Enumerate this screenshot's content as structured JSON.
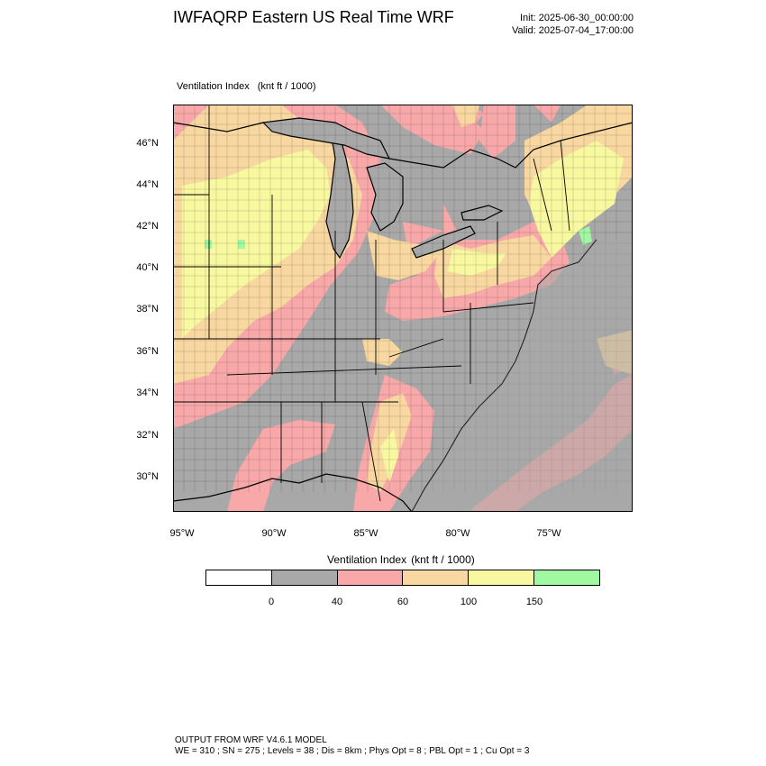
{
  "header": {
    "title": "IWFAQRP Eastern US Real Time WRF",
    "init": "Init: 2025-06-30_00:00:00",
    "valid": "Valid: 2025-07-04_17:00:00"
  },
  "plot": {
    "field_name": "Ventilation Index",
    "units": "(knt ft / 1000)"
  },
  "axes": {
    "lat_labels": [
      "46°N",
      "44°N",
      "42°N",
      "40°N",
      "38°N",
      "36°N",
      "34°N",
      "32°N",
      "30°N"
    ],
    "lon_labels": [
      "95°W",
      "90°W",
      "85°W",
      "80°W",
      "75°W"
    ]
  },
  "colorbar": {
    "title": "Ventilation Index",
    "units": "(knt ft / 1000)",
    "colors": [
      "#ffffff",
      "#a8a8a8",
      "#f8a8a8",
      "#f8d8a0",
      "#f8f8a0",
      "#a0f8a0"
    ],
    "labels": [
      "0",
      "40",
      "60",
      "100",
      "150"
    ]
  },
  "footer": {
    "line1": "OUTPUT FROM WRF V4.6.1 MODEL",
    "line2": "WE = 310 ; SN = 275 ; Levels = 38 ; Dis = 8km ; Phys Opt = 8 ; PBL Opt = 1 ; Cu Opt = 3"
  },
  "map_colors": {
    "water": "#a8a8a8",
    "low": "#a8a8a8",
    "mid": "#f8a8a8",
    "high": "#f8d8a0",
    "vhigh": "#f8f8a0",
    "top": "#a0f8a0"
  }
}
